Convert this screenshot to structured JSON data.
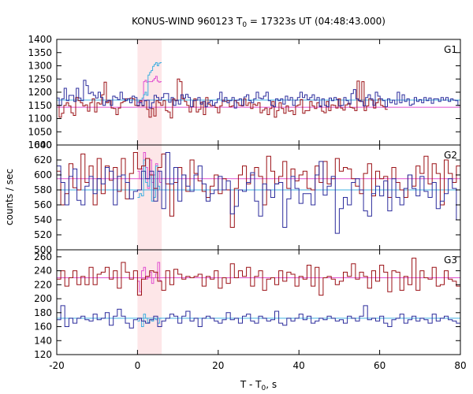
{
  "chart_data": {
    "type": "line",
    "title_main": "KONUS-WIND 960123 T",
    "title_sub": "0",
    "title_rest": " = 17323s UT (04:48:43.000)",
    "ylabel": "counts / sec",
    "xlabel_main": "T - T",
    "xlabel_sub": "0",
    "xlabel_rest": ", s",
    "xlim": [
      -20,
      80
    ],
    "x_ticks": [
      -20,
      0,
      20,
      40,
      60,
      80
    ],
    "highlight_interval": [
      0,
      6
    ],
    "panels": [
      {
        "label": "G1",
        "ylim": [
          1000,
          1400
        ],
        "yticks": [
          1000,
          1050,
          1100,
          1150,
          1200,
          1250,
          1300,
          1350,
          1400
        ],
        "red_x": [
          -20,
          62
        ],
        "red_values": [
          1150,
          1105,
          1120,
          1150,
          1160,
          1148,
          1122,
          1112,
          1180,
          1168,
          1160,
          1148,
          1152,
          1128,
          1160,
          1175,
          1125,
          1160,
          1155,
          1190,
          1238,
          1160,
          1168,
          1140,
          1138,
          1115,
          1140,
          1160,
          1165,
          1175,
          1175,
          1178,
          1175,
          1150,
          1148,
          1168,
          1148,
          1168,
          1135,
          1105,
          1138,
          1110,
          1168,
          1160,
          1150,
          1168,
          1130,
          1125,
          1102,
          1175,
          1168,
          1250,
          1240,
          1175,
          1165,
          1150,
          1125,
          1145,
          1175,
          1125,
          1135,
          1162,
          1115,
          1180,
          1155,
          1148,
          1150,
          1142,
          1122,
          1148,
          1170,
          1165,
          1168,
          1145,
          1148,
          1168,
          1160,
          1150,
          1148,
          1175,
          1150,
          1160,
          1138,
          1155,
          1150,
          1160,
          1122,
          1132,
          1140,
          1115,
          1138,
          1165,
          1105,
          1130,
          1160,
          1138,
          1120,
          1148,
          1128,
          1130,
          1115,
          1148,
          1152,
          1172,
          1120,
          1130,
          1130,
          1165,
          1148,
          1138,
          1160,
          1148,
          1128,
          1122,
          1165,
          1130,
          1152,
          1150,
          1140,
          1175,
          1140,
          1132,
          1152,
          1158,
          1142,
          1140,
          1130,
          1242,
          1165,
          1240,
          1130,
          1148,
          1175,
          1170,
          1140,
          1160,
          1175,
          1150,
          1145,
          1135
        ],
        "red_mean": 1143,
        "blue_x": [
          -20,
          80
        ],
        "blue_values": [
          1178,
          1150,
          1175,
          1215,
          1168,
          1188,
          1188,
          1165,
          1215,
          1178,
          1168,
          1245,
          1225,
          1195,
          1200,
          1188,
          1178,
          1200,
          1180,
          1150,
          1165,
          1170,
          1150,
          1185,
          1180,
          1172,
          1200,
          1175,
          1168,
          1175,
          1160,
          1185,
          1180,
          1150,
          1160,
          1150,
          1168,
          1170,
          1140,
          1160,
          1188,
          1180,
          1170,
          1180,
          1195,
          1195,
          1162,
          1180,
          1150,
          1170,
          1155,
          1190,
          1178,
          1192,
          1180,
          1145,
          1168,
          1170,
          1180,
          1155,
          1165,
          1145,
          1160,
          1168,
          1150,
          1160,
          1175,
          1200,
          1165,
          1180,
          1160,
          1168,
          1180,
          1140,
          1170,
          1175,
          1150,
          1182,
          1190,
          1168,
          1160,
          1175,
          1200,
          1178,
          1175,
          1185,
          1200,
          1168,
          1150,
          1145,
          1175,
          1168,
          1175,
          1155,
          1185,
          1170,
          1180,
          1150,
          1170,
          1180,
          1200,
          1180,
          1190,
          1172,
          1180,
          1190,
          1170,
          1180,
          1145,
          1175,
          1150,
          1145,
          1178,
          1168,
          1180,
          1172,
          1148,
          1150,
          1180,
          1168,
          1155,
          1195,
          1210,
          1175,
          1168,
          1165,
          1148,
          1180,
          1190,
          1175,
          1150,
          1200,
          1185,
          1175,
          1168,
          1145,
          1175,
          1160,
          1170,
          1155,
          1200,
          1160,
          1190,
          1165,
          1175,
          1150,
          1155,
          1180,
          1165,
          1172,
          1160,
          1180,
          1168,
          1178,
          1158,
          1175,
          1175,
          1165,
          1180,
          1170,
          1180,
          1165,
          1175,
          1170,
          1168,
          1150
        ],
        "blue_mean": 1170,
        "overlay_x": [
          0,
          6
        ],
        "magenta_values": [
          1160,
          1162,
          1165,
          1170,
          1240,
          1245,
          1238,
          1240,
          1240,
          1240,
          1245,
          1252,
          1260,
          1242,
          1238,
          1240
        ],
        "magenta_mean": 1143,
        "cyan_values": [
          1165,
          1168,
          1170,
          1178,
          1190,
          1200,
          1188,
          1265,
          1275,
          1282,
          1298,
          1305,
          1312,
          1300,
          1310,
          1312
        ],
        "cyan_mean": 1170
      },
      {
        "label": "G2",
        "ylim": [
          500,
          640
        ],
        "yticks": [
          500,
          520,
          540,
          560,
          580,
          600,
          620,
          640
        ],
        "red_x": [
          -20,
          80
        ],
        "red_values": [
          605,
          560,
          575,
          615,
          583,
          580,
          628,
          590,
          612,
          560,
          622,
          575,
          612,
          593,
          610,
          578,
          622,
          568,
          602,
          630,
          608,
          612,
          622,
          600,
          582,
          610,
          628,
          588,
          545,
          590,
          610,
          600,
          578,
          620,
          602,
          592,
          578,
          570,
          585,
          600,
          575,
          595,
          580,
          530,
          582,
          600,
          612,
          588,
          600,
          610,
          598,
          560,
          625,
          605,
          588,
          598,
          618,
          582,
          608,
          592,
          600,
          605,
          582,
          580,
          612,
          590,
          618,
          588,
          595,
          622,
          605,
          610,
          608,
          595,
          585,
          575,
          602,
          615,
          572,
          605,
          595,
          598,
          570,
          610,
          590,
          580,
          570,
          600,
          585,
          612,
          602,
          625,
          588,
          615,
          602,
          560,
          620,
          602,
          590,
          612
        ],
        "red_mean": 595,
        "blue_x": [
          -20,
          80
        ],
        "blue_values": [
          612,
          590,
          560,
          598,
          608,
          566,
          560,
          585,
          598,
          575,
          595,
          588,
          610,
          605,
          560,
          598,
          600,
          590,
          568,
          578,
          580,
          605,
          595,
          605,
          565,
          605,
          555,
          630,
          588,
          610,
          565,
          600,
          585,
          578,
          600,
          612,
          588,
          565,
          575,
          580,
          598,
          580,
          592,
          548,
          558,
          580,
          578,
          590,
          603,
          565,
          545,
          588,
          580,
          570,
          588,
          590,
          530,
          568,
          598,
          582,
          562,
          575,
          575,
          560,
          600,
          618,
          573,
          585,
          598,
          522,
          555,
          570,
          560,
          590,
          595,
          580,
          552,
          545,
          575,
          585,
          572,
          592,
          552,
          595,
          570,
          560,
          582,
          600,
          582,
          572,
          598,
          578,
          570,
          590,
          555,
          565,
          575,
          595,
          582,
          540
        ],
        "blue_mean": 580,
        "overlay_x": [
          0,
          6
        ],
        "magenta_values": [
          605,
          595,
          608,
          630,
          610,
          582,
          620,
          590,
          600,
          615,
          605,
          590
        ],
        "magenta_mean": 595,
        "cyan_values": [
          570,
          575,
          572,
          620,
          590,
          585,
          600,
          565,
          570,
          612,
          585,
          580
        ],
        "cyan_mean": 580
      },
      {
        "label": "G3",
        "ylim": [
          120,
          270
        ],
        "yticks": [
          120,
          140,
          160,
          180,
          200,
          220,
          240,
          260
        ],
        "red_x": [
          -20,
          80
        ],
        "red_values": [
          228,
          240,
          218,
          230,
          240,
          220,
          232,
          220,
          245,
          220,
          235,
          238,
          245,
          228,
          240,
          215,
          252,
          238,
          228,
          240,
          205,
          228,
          232,
          240,
          238,
          225,
          212,
          240,
          220,
          242,
          235,
          228,
          232,
          230,
          232,
          235,
          218,
          232,
          228,
          240,
          215,
          230,
          222,
          250,
          230,
          240,
          232,
          245,
          218,
          232,
          240,
          212,
          228,
          230,
          220,
          240,
          225,
          238,
          235,
          218,
          232,
          228,
          248,
          218,
          245,
          205,
          230,
          232,
          228,
          220,
          225,
          238,
          232,
          250,
          228,
          238,
          232,
          215,
          240,
          225,
          248,
          238,
          210,
          240,
          238,
          212,
          232,
          220,
          258,
          212,
          240,
          230,
          228,
          245,
          218,
          220,
          240,
          228,
          225,
          218
        ],
        "red_mean": 230,
        "blue_x": [
          -20,
          80
        ],
        "blue_values": [
          170,
          190,
          160,
          172,
          165,
          172,
          175,
          170,
          168,
          178,
          170,
          172,
          180,
          162,
          175,
          185,
          175,
          165,
          158,
          170,
          172,
          168,
          165,
          170,
          175,
          160,
          168,
          172,
          178,
          175,
          165,
          175,
          182,
          168,
          172,
          160,
          172,
          175,
          172,
          168,
          165,
          170,
          180,
          170,
          172,
          165,
          175,
          178,
          168,
          165,
          175,
          172,
          168,
          170,
          182,
          165,
          162,
          172,
          168,
          172,
          178,
          170,
          175,
          165,
          168,
          172,
          170,
          175,
          172,
          168,
          170,
          165,
          175,
          172,
          168,
          175,
          190,
          170,
          172,
          168,
          175,
          165,
          160,
          170,
          172,
          178,
          165,
          170,
          175,
          168,
          172,
          170,
          165,
          178,
          168,
          172,
          175,
          170,
          168,
          165
        ],
        "blue_mean": 172,
        "overlay_x": [
          0,
          6
        ],
        "magenta_values": [
          225,
          210,
          240,
          245,
          228,
          232,
          238,
          222,
          230,
          236,
          252,
          226
        ],
        "magenta_mean": 230,
        "cyan_values": [
          168,
          172,
          160,
          178,
          172,
          166,
          170,
          168,
          172,
          170,
          165,
          172
        ],
        "cyan_mean": 172
      }
    ]
  },
  "colors": {
    "red": "#9b1116",
    "blue": "#2c2c9c",
    "magenta": "#e050d0",
    "cyan": "#40b0e0",
    "highlight": "#fde6e8"
  }
}
